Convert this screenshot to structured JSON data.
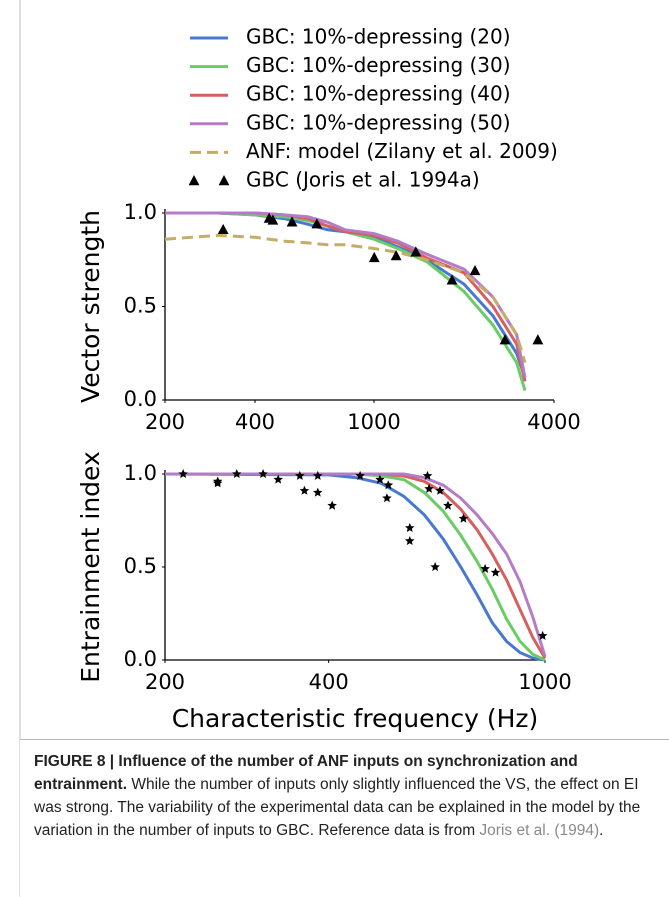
{
  "chart_data": [
    {
      "type": "line",
      "log_x": true,
      "ylabel": "Vector strength",
      "xlim": [
        200,
        4000
      ],
      "xticks": [
        200,
        400,
        1000,
        4000
      ],
      "ylim": [
        0,
        1
      ],
      "yticks": [
        {
          "value": 0,
          "label": "0.0"
        },
        0.5,
        {
          "value": 1,
          "label": "1.0"
        }
      ],
      "legend": "upper center",
      "series": [
        {
          "name": "GBC: 10%-depressing (20)",
          "color": "#4878cf",
          "style": "solid",
          "x": [
            200,
            300,
            400,
            500,
            600,
            700,
            800,
            1000,
            1200,
            1500,
            2000,
            2500,
            3000,
            3200
          ],
          "values": [
            1.0,
            1.0,
            0.99,
            0.97,
            0.94,
            0.91,
            0.9,
            0.87,
            0.82,
            0.75,
            0.62,
            0.45,
            0.25,
            0.12
          ]
        },
        {
          "name": "GBC: 10%-depressing (30)",
          "color": "#6acc65",
          "style": "solid",
          "x": [
            200,
            300,
            400,
            500,
            600,
            700,
            800,
            1000,
            1200,
            1500,
            2000,
            2500,
            3000,
            3200
          ],
          "values": [
            1.0,
            1.0,
            0.99,
            0.98,
            0.96,
            0.93,
            0.9,
            0.86,
            0.81,
            0.74,
            0.58,
            0.4,
            0.2,
            0.05
          ]
        },
        {
          "name": "GBC: 10%-depressing (40)",
          "color": "#d65f5f",
          "style": "solid",
          "x": [
            200,
            300,
            400,
            500,
            600,
            700,
            800,
            1000,
            1200,
            1500,
            2000,
            2500,
            3000,
            3200
          ],
          "values": [
            1.0,
            1.0,
            1.0,
            0.99,
            0.97,
            0.93,
            0.9,
            0.88,
            0.84,
            0.76,
            0.68,
            0.5,
            0.3,
            0.1
          ]
        },
        {
          "name": "GBC: 10%-depressing (50)",
          "color": "#b47cc7",
          "style": "solid",
          "x": [
            200,
            300,
            400,
            500,
            600,
            700,
            800,
            1000,
            1200,
            1500,
            2000,
            2500,
            3000,
            3200
          ],
          "values": [
            1.0,
            1.0,
            1.0,
            0.99,
            0.98,
            0.95,
            0.91,
            0.89,
            0.85,
            0.78,
            0.7,
            0.55,
            0.35,
            0.12
          ]
        },
        {
          "name": "ANF: model (Zilany et al. 2009)",
          "color": "#c4ad66",
          "style": "dashed",
          "x": [
            200,
            300,
            400,
            500,
            600,
            700,
            800,
            1000,
            1200,
            1500,
            2000,
            2500,
            3000,
            3200
          ],
          "values": [
            0.86,
            0.88,
            0.87,
            0.85,
            0.84,
            0.83,
            0.83,
            0.81,
            0.79,
            0.75,
            0.68,
            0.55,
            0.35,
            0.2
          ]
        },
        {
          "name": "GBC (Joris et al. 1994a)",
          "color": "#000000",
          "marker": "triangle",
          "x": [
            313,
            446,
            459,
            532,
            644,
            1002,
            1186,
            1380,
            1824,
            2177,
            2743,
            3533
          ],
          "values": [
            0.91,
            0.97,
            0.96,
            0.95,
            0.94,
            0.76,
            0.77,
            0.79,
            0.64,
            0.69,
            0.32,
            0.32
          ]
        }
      ]
    },
    {
      "type": "line",
      "log_x": true,
      "ylabel": "Entrainment index",
      "xlabel": "Characteristic frequency (Hz)",
      "xlim": [
        200,
        1000
      ],
      "xticks": [
        200,
        400,
        1000
      ],
      "ylim": [
        0,
        1
      ],
      "yticks": [
        {
          "value": 0,
          "label": "0.0"
        },
        0.5,
        {
          "value": 1,
          "label": "1.0"
        }
      ],
      "series": [
        {
          "color": "#4878cf",
          "style": "solid",
          "x": [
            200,
            400,
            450,
            500,
            550,
            600,
            650,
            700,
            750,
            800,
            850,
            900,
            950,
            1000
          ],
          "values": [
            1.0,
            0.995,
            0.98,
            0.95,
            0.88,
            0.78,
            0.65,
            0.5,
            0.35,
            0.2,
            0.1,
            0.04,
            0.01,
            0
          ]
        },
        {
          "color": "#6acc65",
          "style": "solid",
          "x": [
            200,
            400,
            450,
            500,
            550,
            600,
            650,
            700,
            750,
            800,
            850,
            900,
            950,
            1000
          ],
          "values": [
            1.0,
            1.0,
            1.0,
            0.99,
            0.97,
            0.9,
            0.8,
            0.67,
            0.53,
            0.38,
            0.22,
            0.1,
            0.03,
            0
          ]
        },
        {
          "color": "#d65f5f",
          "style": "solid",
          "x": [
            200,
            400,
            450,
            500,
            550,
            600,
            650,
            700,
            750,
            800,
            850,
            900,
            950,
            1000
          ],
          "values": [
            1.0,
            1.0,
            1.0,
            1.0,
            0.99,
            0.96,
            0.9,
            0.81,
            0.7,
            0.57,
            0.43,
            0.27,
            0.12,
            0.01
          ]
        },
        {
          "color": "#b47cc7",
          "style": "solid",
          "x": [
            200,
            400,
            450,
            500,
            550,
            600,
            650,
            700,
            750,
            800,
            850,
            900,
            950,
            1000
          ],
          "values": [
            1.0,
            1.0,
            1.0,
            1.0,
            1.0,
            0.98,
            0.94,
            0.87,
            0.78,
            0.68,
            0.57,
            0.42,
            0.23,
            0.02
          ]
        },
        {
          "color": "#000000",
          "marker": "star",
          "x": [
            216,
            250,
            250,
            271,
            303,
            323,
            354,
            361,
            382,
            382,
            406,
            457,
            497,
            512,
            515,
            564,
            564,
            608,
            612,
            628,
            641,
            663,
            708,
            776,
            811,
            990
          ],
          "values": [
            1.0,
            0.96,
            0.95,
            1.0,
            1.0,
            0.97,
            0.99,
            0.91,
            0.99,
            0.9,
            0.83,
            0.99,
            0.97,
            0.87,
            0.94,
            0.71,
            0.64,
            0.99,
            0.92,
            0.5,
            0.91,
            0.83,
            0.76,
            0.49,
            0.47,
            0.13
          ]
        }
      ]
    }
  ],
  "caption": {
    "label": "FIGURE 8 | Influence of the number of ANF inputs on synchronization and entrainment.",
    "text": "While the number of inputs only slightly influenced the VS, the effect on EI was strong. The variability of the experimental data can be explained in the model by the variation in the number of inputs to GBC. Reference data is from",
    "link": "Joris et al. (1994)",
    "end": "."
  }
}
